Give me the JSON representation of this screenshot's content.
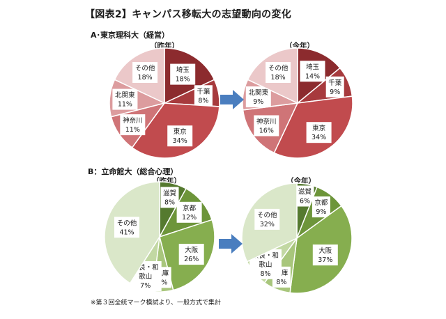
{
  "title": "【図表2】キャンパス移転大の志望動向の変化",
  "footnote": "※第３回全統マーク模試より、一般方式で集計",
  "colors": {
    "arrow": "#4a7ebf",
    "slice_label_bg": "#ffffff"
  },
  "chart_data": [
    {
      "type": "pie",
      "section": "A･東京理科大（経営）",
      "subtitle": "（昨年）",
      "unit": "%",
      "slices": [
        {
          "label": "埼玉",
          "value": 18,
          "color": "#8c2b2e"
        },
        {
          "label": "千葉",
          "value": 8,
          "color": "#a73a3d"
        },
        {
          "label": "東京",
          "value": 34,
          "color": "#c14b4e"
        },
        {
          "label": "神奈川",
          "value": 11,
          "color": "#cf7477"
        },
        {
          "label": "北関東",
          "value": 11,
          "color": "#dc9c9e"
        },
        {
          "label": "その他",
          "value": 18,
          "color": "#ebc8c9"
        }
      ]
    },
    {
      "type": "pie",
      "section": "",
      "subtitle": "（今年）",
      "unit": "%",
      "slices": [
        {
          "label": "埼玉",
          "value": 14,
          "color": "#8c2b2e"
        },
        {
          "label": "千葉",
          "value": 9,
          "color": "#a73a3d"
        },
        {
          "label": "東京",
          "value": 34,
          "color": "#c14b4e"
        },
        {
          "label": "神奈川",
          "value": 16,
          "color": "#cf7477"
        },
        {
          "label": "北関東",
          "value": 9,
          "color": "#dc9c9e"
        },
        {
          "label": "その他",
          "value": 18,
          "color": "#ebc8c9"
        }
      ]
    },
    {
      "type": "pie",
      "section": "B：立命館大（総合心理）",
      "subtitle": "（昨年）",
      "unit": "%",
      "slices": [
        {
          "label": "滋賀",
          "value": 8,
          "color": "#557a2f"
        },
        {
          "label": "京都",
          "value": 12,
          "color": "#6d953a"
        },
        {
          "label": "大阪",
          "value": 26,
          "color": "#86ae4f"
        },
        {
          "label": "兵庫",
          "value": 6,
          "color": "#a8c67c"
        },
        {
          "label": "奈良・和歌山",
          "value": 7,
          "color": "#c2d8a3"
        },
        {
          "label": "その他",
          "value": 41,
          "color": "#dae7c9"
        }
      ]
    },
    {
      "type": "pie",
      "section": "",
      "subtitle": "（今年）",
      "unit": "%",
      "slices": [
        {
          "label": "滋賀",
          "value": 6,
          "color": "#557a2f"
        },
        {
          "label": "京都",
          "value": 9,
          "color": "#6d953a"
        },
        {
          "label": "大阪",
          "value": 37,
          "color": "#86ae4f"
        },
        {
          "label": "兵庫",
          "value": 8,
          "color": "#a8c67c"
        },
        {
          "label": "奈良・和歌山",
          "value": 8,
          "color": "#c2d8a3"
        },
        {
          "label": "その他",
          "value": 32,
          "color": "#dae7c9"
        }
      ]
    }
  ]
}
